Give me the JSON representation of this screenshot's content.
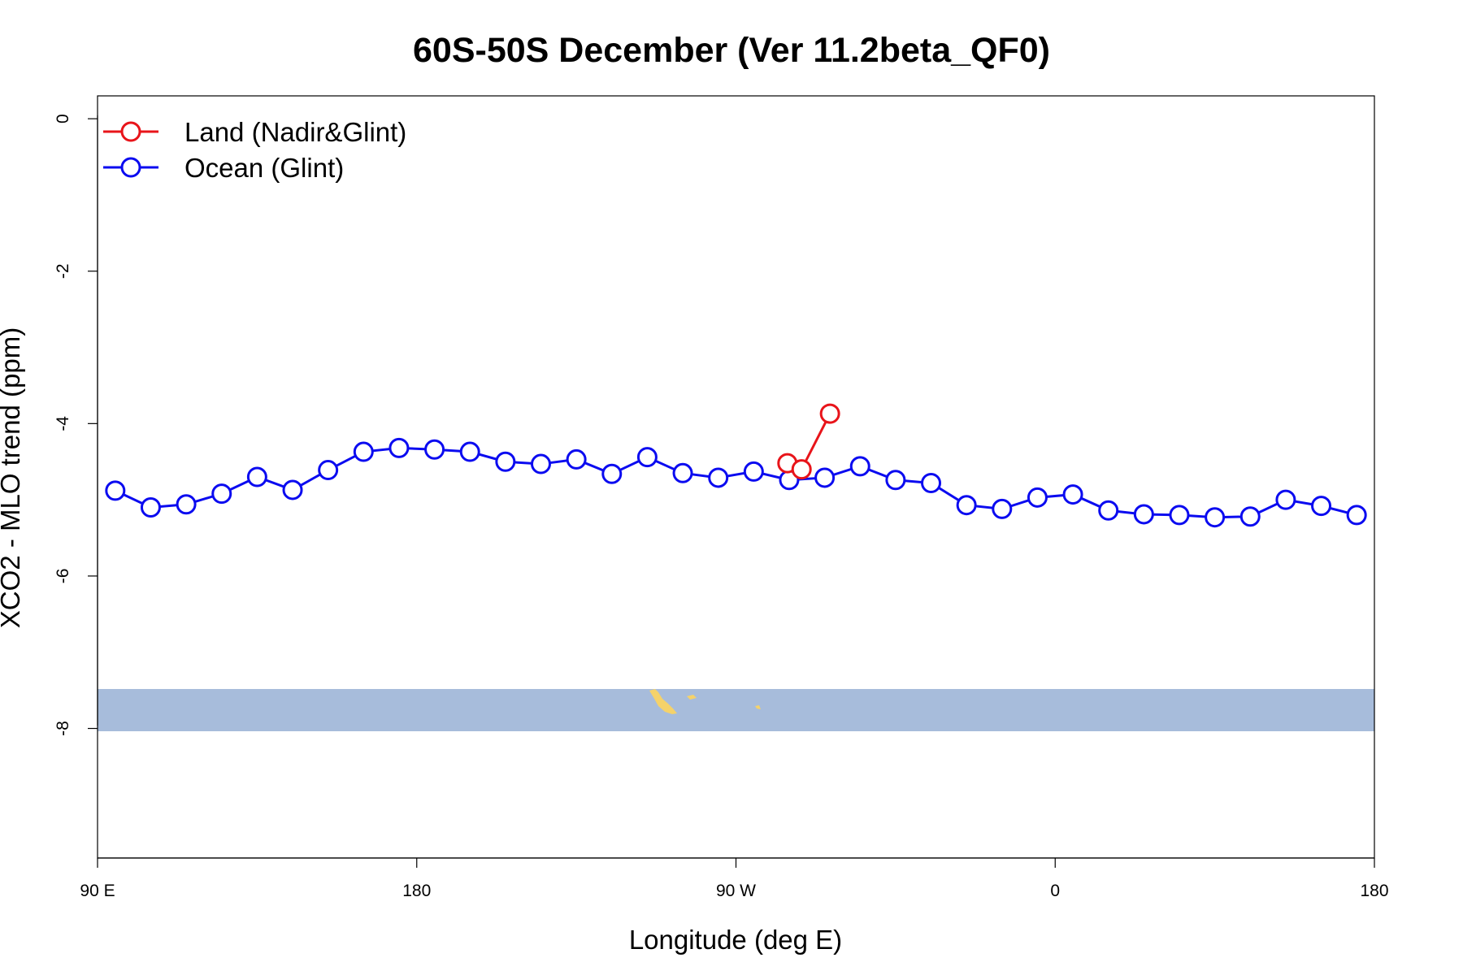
{
  "chart_data": {
    "type": "line",
    "title": "60S-50S December (Ver 11.2beta_QF0)",
    "xlabel": "Longitude (deg E)",
    "ylabel": "XCO2 - MLO trend (ppm)",
    "xlim": [
      90,
      450
    ],
    "ylim": [
      -9.7,
      0.3
    ],
    "x_ticks": [
      {
        "value": 90,
        "label": "90 E"
      },
      {
        "value": 180,
        "label": "180"
      },
      {
        "value": 270,
        "label": "90 W"
      },
      {
        "value": 360,
        "label": "0"
      },
      {
        "value": 450,
        "label": "180"
      }
    ],
    "y_ticks": [
      {
        "value": 0,
        "label": "0"
      },
      {
        "value": -2,
        "label": "-2"
      },
      {
        "value": -4,
        "label": "-4"
      },
      {
        "value": -6,
        "label": "-6"
      },
      {
        "value": -8,
        "label": "-8"
      }
    ],
    "legend_position": "top-left",
    "grid": false,
    "series": [
      {
        "name": "Land (Nadir&Glint)",
        "color": "#e8141a",
        "x": [
          284.5,
          288.5,
          296.5
        ],
        "y": [
          -4.52,
          -4.6,
          -3.87
        ]
      },
      {
        "name": "Ocean (Glint)",
        "color": "#0b0bf0",
        "x": [
          95,
          105,
          115,
          125,
          135,
          145,
          155,
          165,
          175,
          185,
          195,
          205,
          215,
          225,
          235,
          245,
          255,
          265,
          275,
          285,
          295,
          305,
          315,
          325,
          335,
          345,
          355,
          365,
          375,
          385,
          395,
          405,
          415,
          425,
          435,
          445
        ],
        "y": [
          -4.88,
          -5.1,
          -5.06,
          -4.92,
          -4.7,
          -4.87,
          -4.61,
          -4.37,
          -4.32,
          -4.34,
          -4.37,
          -4.5,
          -4.53,
          -4.47,
          -4.66,
          -4.44,
          -4.65,
          -4.71,
          -4.63,
          -4.74,
          -4.71,
          -4.56,
          -4.74,
          -4.78,
          -5.07,
          -5.12,
          -4.97,
          -4.93,
          -5.14,
          -5.19,
          -5.2,
          -5.23,
          -5.22,
          -5.0,
          -5.08,
          -5.2
        ]
      }
    ],
    "map_strip": {
      "description": "land/ocean map band",
      "ocean_color": "#a7bcdb",
      "land_color": "#f5d26a"
    }
  }
}
